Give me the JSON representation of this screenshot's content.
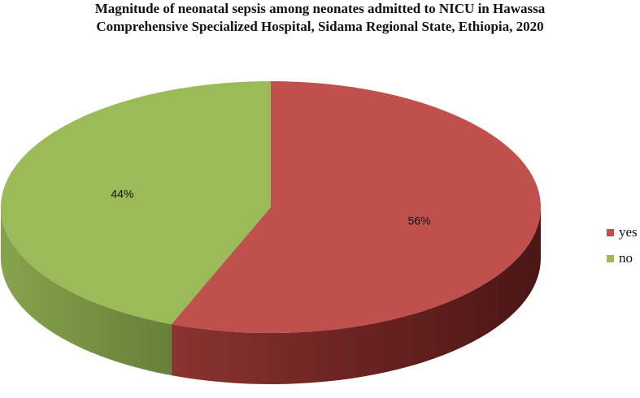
{
  "chart_data": {
    "type": "pie",
    "title_lines": [
      "Magnitude of neonatal sepsis among neonates admitted to NICU in Hawassa",
      "Comprehensive Specialized Hospital, Sidama Regional State, Ethiopia, 2020"
    ],
    "categories": [
      "yes",
      "no"
    ],
    "values": [
      56,
      44
    ],
    "data_labels": [
      "56%",
      "44%"
    ],
    "colors": [
      "#C0504D",
      "#9BBB59"
    ],
    "legend_position": "right",
    "style": "3d-tilted"
  }
}
